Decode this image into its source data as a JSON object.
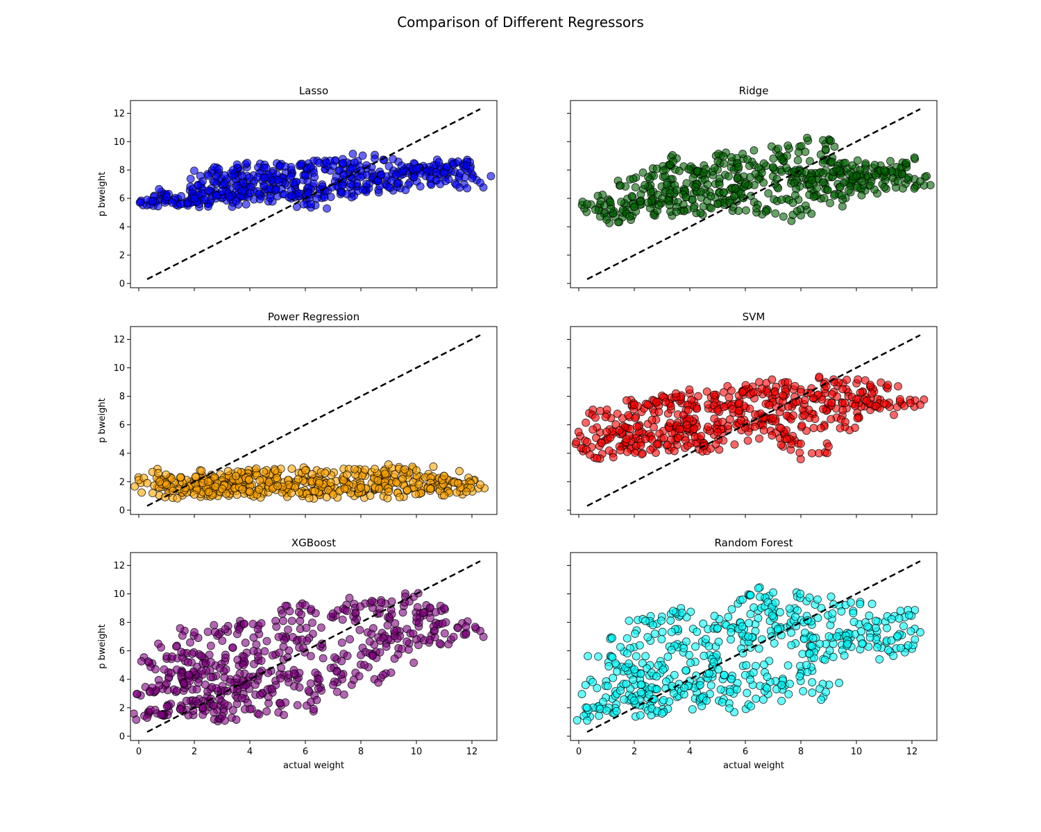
{
  "figure": {
    "title": "Comparison of Different Regressors"
  },
  "chart_data": [
    {
      "type": "scatter",
      "title": "Lasso",
      "xlabel": "",
      "ylabel": "p bweight",
      "xlim": [
        -0.3,
        12.9
      ],
      "ylim": [
        -0.3,
        12.9
      ],
      "xticks": [
        0,
        2,
        4,
        6,
        8,
        10,
        12
      ],
      "yticks": [
        0,
        2,
        4,
        6,
        8,
        10,
        12
      ],
      "show_xticklabels": false,
      "show_yticklabels": true,
      "grid": false,
      "color": "#0000ff",
      "points": [
        [
          0.3,
          5.9
        ],
        [
          0.5,
          5.8
        ],
        [
          1.0,
          6.1
        ],
        [
          1.2,
          5.7
        ],
        [
          1.5,
          5.6
        ],
        [
          2.0,
          6.0
        ],
        [
          2.3,
          7.2
        ],
        [
          2.5,
          7.6
        ],
        [
          2.8,
          6.2
        ],
        [
          3.0,
          6.5
        ],
        [
          3.4,
          8.0
        ],
        [
          3.9,
          8.5
        ],
        [
          3.5,
          5.8
        ],
        [
          4.0,
          6.4
        ],
        [
          4.5,
          6.9
        ],
        [
          5.0,
          7.3
        ],
        [
          5.5,
          6.2
        ],
        [
          6.0,
          7.6
        ],
        [
          6.2,
          5.6
        ],
        [
          6.5,
          8.5
        ],
        [
          7.0,
          8.3
        ],
        [
          7.5,
          6.3
        ],
        [
          8.0,
          7.5
        ],
        [
          8.5,
          8.8
        ],
        [
          9.0,
          6.8
        ],
        [
          9.5,
          7.9
        ],
        [
          10.0,
          8.1
        ],
        [
          10.5,
          7.4
        ],
        [
          11.0,
          7.8
        ],
        [
          11.5,
          8.6
        ],
        [
          11.8,
          8.3
        ],
        [
          12.3,
          7.1
        ]
      ],
      "reference_line": [
        [
          0.3,
          0.3
        ],
        [
          12.3,
          12.3
        ]
      ]
    },
    {
      "type": "scatter",
      "title": "Ridge",
      "xlabel": "",
      "ylabel": "",
      "xlim": [
        -0.3,
        12.9
      ],
      "ylim": [
        -0.3,
        12.9
      ],
      "xticks": [
        0,
        2,
        4,
        6,
        8,
        10,
        12
      ],
      "yticks": [
        0,
        2,
        4,
        6,
        8,
        10,
        12
      ],
      "show_xticklabels": false,
      "show_yticklabels": false,
      "grid": false,
      "color": "#006400",
      "points": [
        [
          0.3,
          5.6
        ],
        [
          0.6,
          5.2
        ],
        [
          1.0,
          4.5
        ],
        [
          1.5,
          6.9
        ],
        [
          2.0,
          5.4
        ],
        [
          2.5,
          7.5
        ],
        [
          3.0,
          6.0
        ],
        [
          3.4,
          8.6
        ],
        [
          3.8,
          5.1
        ],
        [
          4.2,
          6.8
        ],
        [
          4.5,
          7.8
        ],
        [
          5.0,
          5.6
        ],
        [
          5.5,
          8.9
        ],
        [
          6.0,
          7.0
        ],
        [
          6.4,
          5.3
        ],
        [
          7.0,
          8.2
        ],
        [
          7.5,
          9.0
        ],
        [
          8.0,
          4.8
        ],
        [
          8.4,
          7.3
        ],
        [
          8.8,
          10.1
        ],
        [
          9.2,
          6.2
        ],
        [
          9.6,
          8.5
        ],
        [
          10.0,
          7.6
        ],
        [
          10.5,
          6.9
        ],
        [
          11.0,
          8.0
        ],
        [
          11.5,
          7.2
        ],
        [
          11.8,
          8.5
        ],
        [
          12.3,
          7.2
        ]
      ],
      "reference_line": [
        [
          0.3,
          0.3
        ],
        [
          12.3,
          12.3
        ]
      ]
    },
    {
      "type": "scatter",
      "title": "Power Regression",
      "xlabel": "",
      "ylabel": "p bweight",
      "xlim": [
        -0.3,
        12.9
      ],
      "ylim": [
        -0.3,
        12.9
      ],
      "xticks": [
        0,
        2,
        4,
        6,
        8,
        10,
        12
      ],
      "yticks": [
        0,
        2,
        4,
        6,
        8,
        10,
        12
      ],
      "show_xticklabels": false,
      "show_yticklabels": true,
      "grid": false,
      "color": "#ffa500",
      "points": [
        [
          0.3,
          1.9
        ],
        [
          0.5,
          1.2
        ],
        [
          0.7,
          2.6
        ],
        [
          1.0,
          1.8
        ],
        [
          1.5,
          2.3
        ],
        [
          2.0,
          1.1
        ],
        [
          2.5,
          2.0
        ],
        [
          3.0,
          1.5
        ],
        [
          3.5,
          2.4
        ],
        [
          4.0,
          1.3
        ],
        [
          4.5,
          2.7
        ],
        [
          5.0,
          1.7
        ],
        [
          5.5,
          1.2
        ],
        [
          6.0,
          2.8
        ],
        [
          6.5,
          1.9
        ],
        [
          7.0,
          1.1
        ],
        [
          7.5,
          2.5
        ],
        [
          8.0,
          1.6
        ],
        [
          8.5,
          2.9
        ],
        [
          9.0,
          1.3
        ],
        [
          9.5,
          2.2
        ],
        [
          10.0,
          2.8
        ],
        [
          10.5,
          1.5
        ],
        [
          11.0,
          2.4
        ],
        [
          11.5,
          1.9
        ],
        [
          11.8,
          1.3
        ],
        [
          12.3,
          1.8
        ]
      ],
      "reference_line": [
        [
          0.3,
          0.3
        ],
        [
          12.3,
          12.3
        ]
      ]
    },
    {
      "type": "scatter",
      "title": "SVM",
      "xlabel": "",
      "ylabel": "",
      "xlim": [
        -0.3,
        12.9
      ],
      "ylim": [
        -0.3,
        12.9
      ],
      "xticks": [
        0,
        2,
        4,
        6,
        8,
        10,
        12
      ],
      "yticks": [
        0,
        2,
        4,
        6,
        8,
        10,
        12
      ],
      "show_xticklabels": false,
      "show_yticklabels": false,
      "grid": false,
      "color": "#ff0000",
      "points": [
        [
          0.3,
          4.8
        ],
        [
          0.4,
          3.9
        ],
        [
          0.6,
          6.5
        ],
        [
          1.0,
          5.5
        ],
        [
          1.5,
          4.2
        ],
        [
          2.0,
          7.4
        ],
        [
          2.4,
          5.0
        ],
        [
          2.8,
          7.6
        ],
        [
          3.2,
          4.6
        ],
        [
          3.5,
          8.2
        ],
        [
          3.9,
          6.0
        ],
        [
          4.5,
          4.5
        ],
        [
          5.0,
          7.0
        ],
        [
          5.5,
          8.4
        ],
        [
          6.0,
          5.8
        ],
        [
          6.5,
          9.0
        ],
        [
          7.0,
          6.5
        ],
        [
          7.5,
          5.0
        ],
        [
          8.0,
          8.3
        ],
        [
          8.4,
          4.0
        ],
        [
          8.8,
          7.1
        ],
        [
          9.2,
          9.0
        ],
        [
          9.6,
          6.2
        ],
        [
          10.0,
          7.8
        ],
        [
          10.5,
          8.8
        ],
        [
          11.0,
          7.5
        ],
        [
          11.5,
          8.7
        ],
        [
          12.3,
          7.4
        ]
      ],
      "reference_line": [
        [
          0.3,
          0.3
        ],
        [
          12.3,
          12.3
        ]
      ]
    },
    {
      "type": "scatter",
      "title": "XGBoost",
      "xlabel": "actual weight",
      "ylabel": "p bweight",
      "xlim": [
        -0.3,
        12.9
      ],
      "ylim": [
        -0.3,
        12.9
      ],
      "xticks": [
        0,
        2,
        4,
        6,
        8,
        10,
        12
      ],
      "yticks": [
        0,
        2,
        4,
        6,
        8,
        10,
        12
      ],
      "show_xticklabels": true,
      "show_yticklabels": true,
      "grid": false,
      "color": "#800080",
      "points": [
        [
          0.3,
          1.3
        ],
        [
          0.4,
          3.1
        ],
        [
          0.6,
          4.7
        ],
        [
          0.7,
          6.5
        ],
        [
          0.8,
          1.5
        ],
        [
          1.0,
          3.7
        ],
        [
          1.2,
          5.6
        ],
        [
          1.5,
          1.9
        ],
        [
          1.8,
          4.3
        ],
        [
          2.0,
          7.3
        ],
        [
          2.3,
          2.0
        ],
        [
          2.6,
          5.2
        ],
        [
          3.0,
          1.4
        ],
        [
          3.1,
          1.1
        ],
        [
          3.4,
          3.3
        ],
        [
          3.8,
          7.9
        ],
        [
          4.0,
          1.9
        ],
        [
          4.3,
          5.6
        ],
        [
          4.8,
          3.3
        ],
        [
          5.2,
          8.1
        ],
        [
          5.6,
          4.4
        ],
        [
          6.0,
          9.2
        ],
        [
          6.3,
          1.9
        ],
        [
          6.6,
          6.5
        ],
        [
          7.0,
          3.6
        ],
        [
          7.5,
          8.8
        ],
        [
          8.0,
          5.7
        ],
        [
          8.4,
          9.5
        ],
        [
          8.8,
          4.3
        ],
        [
          9.2,
          7.4
        ],
        [
          9.6,
          9.8
        ],
        [
          10.0,
          6.8
        ],
        [
          10.5,
          8.3
        ],
        [
          11.0,
          9.0
        ],
        [
          11.5,
          7.6
        ],
        [
          12.3,
          7.4
        ]
      ],
      "reference_line": [
        [
          0.3,
          0.3
        ],
        [
          12.3,
          12.3
        ]
      ]
    },
    {
      "type": "scatter",
      "title": "Random Forest",
      "xlabel": "actual weight",
      "ylabel": "",
      "xlim": [
        -0.3,
        12.9
      ],
      "ylim": [
        -0.3,
        12.9
      ],
      "xticks": [
        0,
        2,
        4,
        6,
        8,
        10,
        12
      ],
      "yticks": [
        0,
        2,
        4,
        6,
        8,
        10,
        12
      ],
      "show_xticklabels": true,
      "show_yticklabels": false,
      "grid": false,
      "color": "#00ffff",
      "points": [
        [
          0.3,
          1.1
        ],
        [
          0.3,
          2.0
        ],
        [
          0.5,
          3.8
        ],
        [
          0.7,
          5.6
        ],
        [
          1.0,
          1.8
        ],
        [
          1.2,
          6.9
        ],
        [
          1.5,
          3.2
        ],
        [
          1.8,
          5.1
        ],
        [
          2.0,
          2.5
        ],
        [
          2.4,
          8.1
        ],
        [
          2.8,
          4.2
        ],
        [
          3.0,
          1.6
        ],
        [
          3.4,
          8.8
        ],
        [
          3.8,
          3.4
        ],
        [
          4.2,
          6.3
        ],
        [
          4.6,
          2.5
        ],
        [
          5.0,
          7.6
        ],
        [
          5.5,
          4.0
        ],
        [
          5.9,
          9.6
        ],
        [
          6.2,
          2.1
        ],
        [
          6.6,
          6.8
        ],
        [
          7.0,
          10.1
        ],
        [
          7.3,
          3.6
        ],
        [
          7.8,
          8.4
        ],
        [
          8.2,
          5.0
        ],
        [
          8.6,
          9.6
        ],
        [
          8.9,
          3.1
        ],
        [
          9.3,
          7.0
        ],
        [
          9.8,
          9.4
        ],
        [
          10.2,
          6.5
        ],
        [
          10.7,
          8.1
        ],
        [
          11.1,
          7.6
        ],
        [
          11.6,
          6.2
        ],
        [
          11.9,
          8.5
        ],
        [
          12.3,
          7.3
        ]
      ],
      "reference_line": [
        [
          0.3,
          0.3
        ],
        [
          12.3,
          12.3
        ]
      ]
    }
  ]
}
